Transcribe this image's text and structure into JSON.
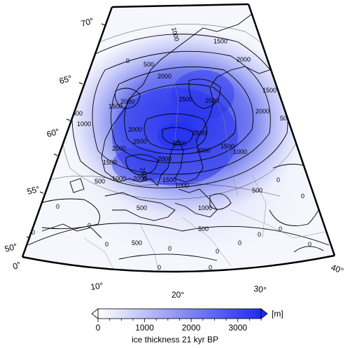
{
  "map": {
    "projection": "conic",
    "lat_labels": [
      "70°",
      "65°",
      "60°",
      "55°",
      "50°"
    ],
    "lon_labels": [
      "0°",
      "10°",
      "20°",
      "30°",
      "40°"
    ],
    "contour_labels": [
      "1000",
      "1500",
      "1500",
      "500",
      "2000",
      "1500",
      "2500",
      "2000",
      "2000",
      "500",
      "1000",
      "1500",
      "2000",
      "2500",
      "2000",
      "2500",
      "2500",
      "3000",
      "2500",
      "2000",
      "2000",
      "2500",
      "1500",
      "1000",
      "2000",
      "1500",
      "1000",
      "1500",
      "1000",
      "500",
      "500",
      "1000",
      "500",
      "500",
      "500",
      "0",
      "0",
      "0",
      "0",
      "0",
      "0",
      "0",
      "0",
      "0",
      "0",
      "0",
      "0",
      "500",
      "0",
      "0",
      "0",
      "0",
      "0"
    ],
    "colors": {
      "ice_max": "#1f2bf0",
      "ice_min": "#ffffff",
      "coast": "#000000",
      "border": "#888888"
    }
  },
  "colorbar": {
    "ticks": [
      "0",
      "1000",
      "2000",
      "3000"
    ],
    "unit": "[m]",
    "label": "ice thickness 21 kyr BP",
    "range": [
      0,
      3500
    ]
  }
}
